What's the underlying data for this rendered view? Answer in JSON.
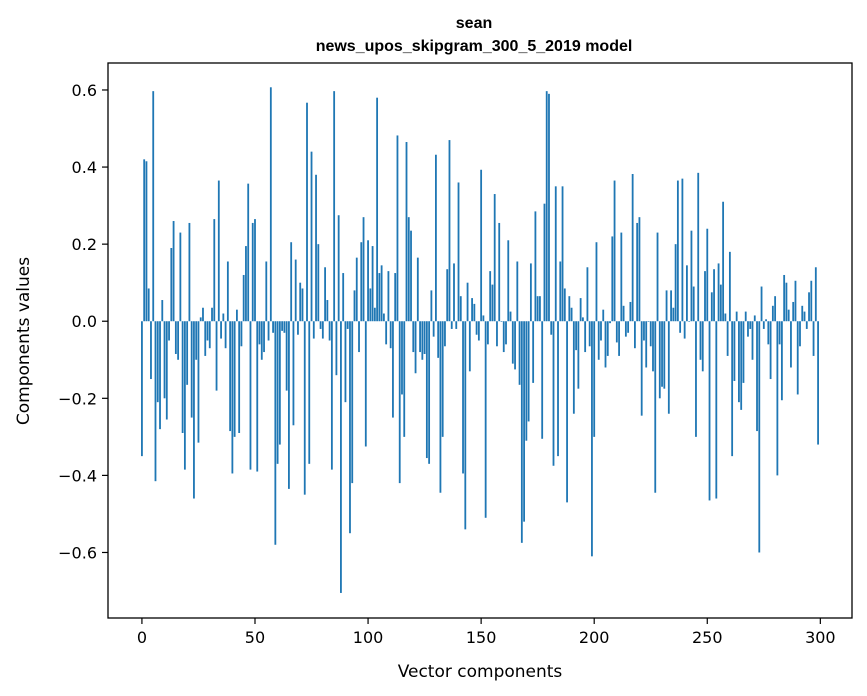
{
  "chart_data": {
    "type": "bar",
    "title_lines": [
      "sean",
      "news_upos_skipgram_300_5_2019 model"
    ],
    "xlabel": "Vector components",
    "ylabel": "Components values",
    "xlim": [
      -15,
      314
    ],
    "ylim": [
      -0.77,
      0.67
    ],
    "xticks": [
      0,
      50,
      100,
      150,
      200,
      250,
      300
    ],
    "yticks": [
      -0.6,
      -0.4,
      -0.2,
      0.0,
      0.2,
      0.4,
      0.6
    ],
    "ytick_labels": [
      "−0.6",
      "−0.4",
      "−0.2",
      "0.0",
      "0.2",
      "0.4",
      "0.6"
    ],
    "bar_color": "#1f77b4",
    "grid": false,
    "x_start": 0,
    "values": [
      -0.35,
      0.42,
      0.415,
      0.085,
      -0.15,
      0.597,
      -0.415,
      -0.21,
      -0.28,
      0.055,
      -0.2,
      -0.255,
      -0.05,
      0.19,
      0.26,
      -0.085,
      -0.1,
      0.23,
      -0.29,
      -0.385,
      -0.165,
      0.255,
      -0.25,
      -0.46,
      -0.1,
      -0.315,
      0.01,
      0.035,
      -0.09,
      -0.05,
      -0.07,
      0.035,
      0.265,
      -0.18,
      0.365,
      -0.045,
      0.02,
      -0.07,
      0.155,
      -0.285,
      -0.395,
      -0.3,
      0.03,
      -0.29,
      -0.065,
      0.12,
      0.195,
      0.357,
      -0.385,
      0.255,
      0.265,
      -0.39,
      -0.06,
      -0.1,
      -0.08,
      0.155,
      -0.05,
      0.607,
      -0.03,
      -0.58,
      -0.37,
      -0.32,
      -0.025,
      -0.03,
      -0.18,
      -0.435,
      0.205,
      -0.27,
      0.16,
      -0.035,
      0.1,
      0.085,
      -0.45,
      0.567,
      -0.37,
      0.44,
      -0.045,
      0.38,
      0.2,
      -0.02,
      -0.045,
      0.14,
      0.055,
      -0.05,
      -0.385,
      0.597,
      -0.14,
      0.275,
      -0.705,
      0.125,
      -0.21,
      -0.02,
      -0.55,
      -0.42,
      0.08,
      0.165,
      -0.08,
      0.205,
      0.27,
      -0.325,
      0.21,
      0.085,
      0.195,
      0.035,
      0.58,
      0.125,
      0.145,
      0.02,
      -0.06,
      0.13,
      -0.07,
      -0.25,
      0.125,
      0.482,
      -0.42,
      -0.19,
      -0.3,
      0.465,
      0.27,
      0.235,
      -0.08,
      -0.135,
      0.165,
      -0.08,
      -0.1,
      -0.085,
      -0.355,
      -0.37,
      0.08,
      -0.04,
      0.432,
      -0.095,
      -0.445,
      -0.3,
      -0.065,
      0.135,
      0.47,
      -0.02,
      0.15,
      -0.02,
      0.36,
      0.065,
      -0.395,
      -0.54,
      0.1,
      -0.13,
      0.06,
      0.045,
      -0.035,
      -0.05,
      0.393,
      0.015,
      -0.51,
      -0.06,
      0.13,
      0.095,
      0.33,
      -0.065,
      0.255,
      0.0,
      -0.08,
      -0.06,
      0.21,
      0.025,
      -0.11,
      -0.125,
      0.155,
      -0.165,
      -0.575,
      -0.52,
      -0.31,
      -0.26,
      0.15,
      -0.16,
      0.285,
      0.065,
      0.065,
      -0.305,
      0.305,
      0.597,
      0.59,
      -0.035,
      -0.375,
      0.35,
      -0.35,
      0.155,
      0.35,
      0.085,
      -0.47,
      0.065,
      0.035,
      -0.24,
      -0.075,
      -0.175,
      0.06,
      0.01,
      -0.08,
      0.14,
      -0.065,
      -0.61,
      -0.3,
      0.205,
      -0.1,
      -0.05,
      0.03,
      -0.12,
      -0.09,
      -0.005,
      0.22,
      0.365,
      -0.055,
      -0.09,
      0.23,
      0.04,
      -0.04,
      -0.03,
      0.05,
      0.382,
      -0.07,
      0.255,
      0.27,
      -0.245,
      -0.05,
      -0.12,
      0.0,
      -0.065,
      -0.13,
      -0.445,
      0.23,
      -0.2,
      -0.17,
      -0.175,
      0.08,
      -0.24,
      0.08,
      0.035,
      0.2,
      0.365,
      -0.03,
      0.37,
      -0.045,
      0.145,
      0.0,
      0.235,
      0.09,
      -0.3,
      0.385,
      -0.1,
      -0.13,
      0.13,
      0.24,
      -0.465,
      0.075,
      0.135,
      -0.46,
      0.15,
      0.095,
      0.31,
      0.02,
      -0.09,
      0.18,
      -0.35,
      -0.155,
      0.025,
      -0.21,
      -0.23,
      -0.16,
      0.025,
      -0.04,
      -0.02,
      -0.1,
      0.015,
      -0.285,
      -0.6,
      0.09,
      -0.02,
      0.005,
      -0.06,
      -0.15,
      0.04,
      0.065,
      -0.4,
      -0.06,
      -0.205,
      0.12,
      0.1,
      0.03,
      -0.12,
      0.05,
      0.105,
      -0.19,
      -0.065,
      0.04,
      0.025,
      -0.02,
      0.075,
      0.105,
      -0.09,
      0.14,
      -0.32
    ]
  }
}
